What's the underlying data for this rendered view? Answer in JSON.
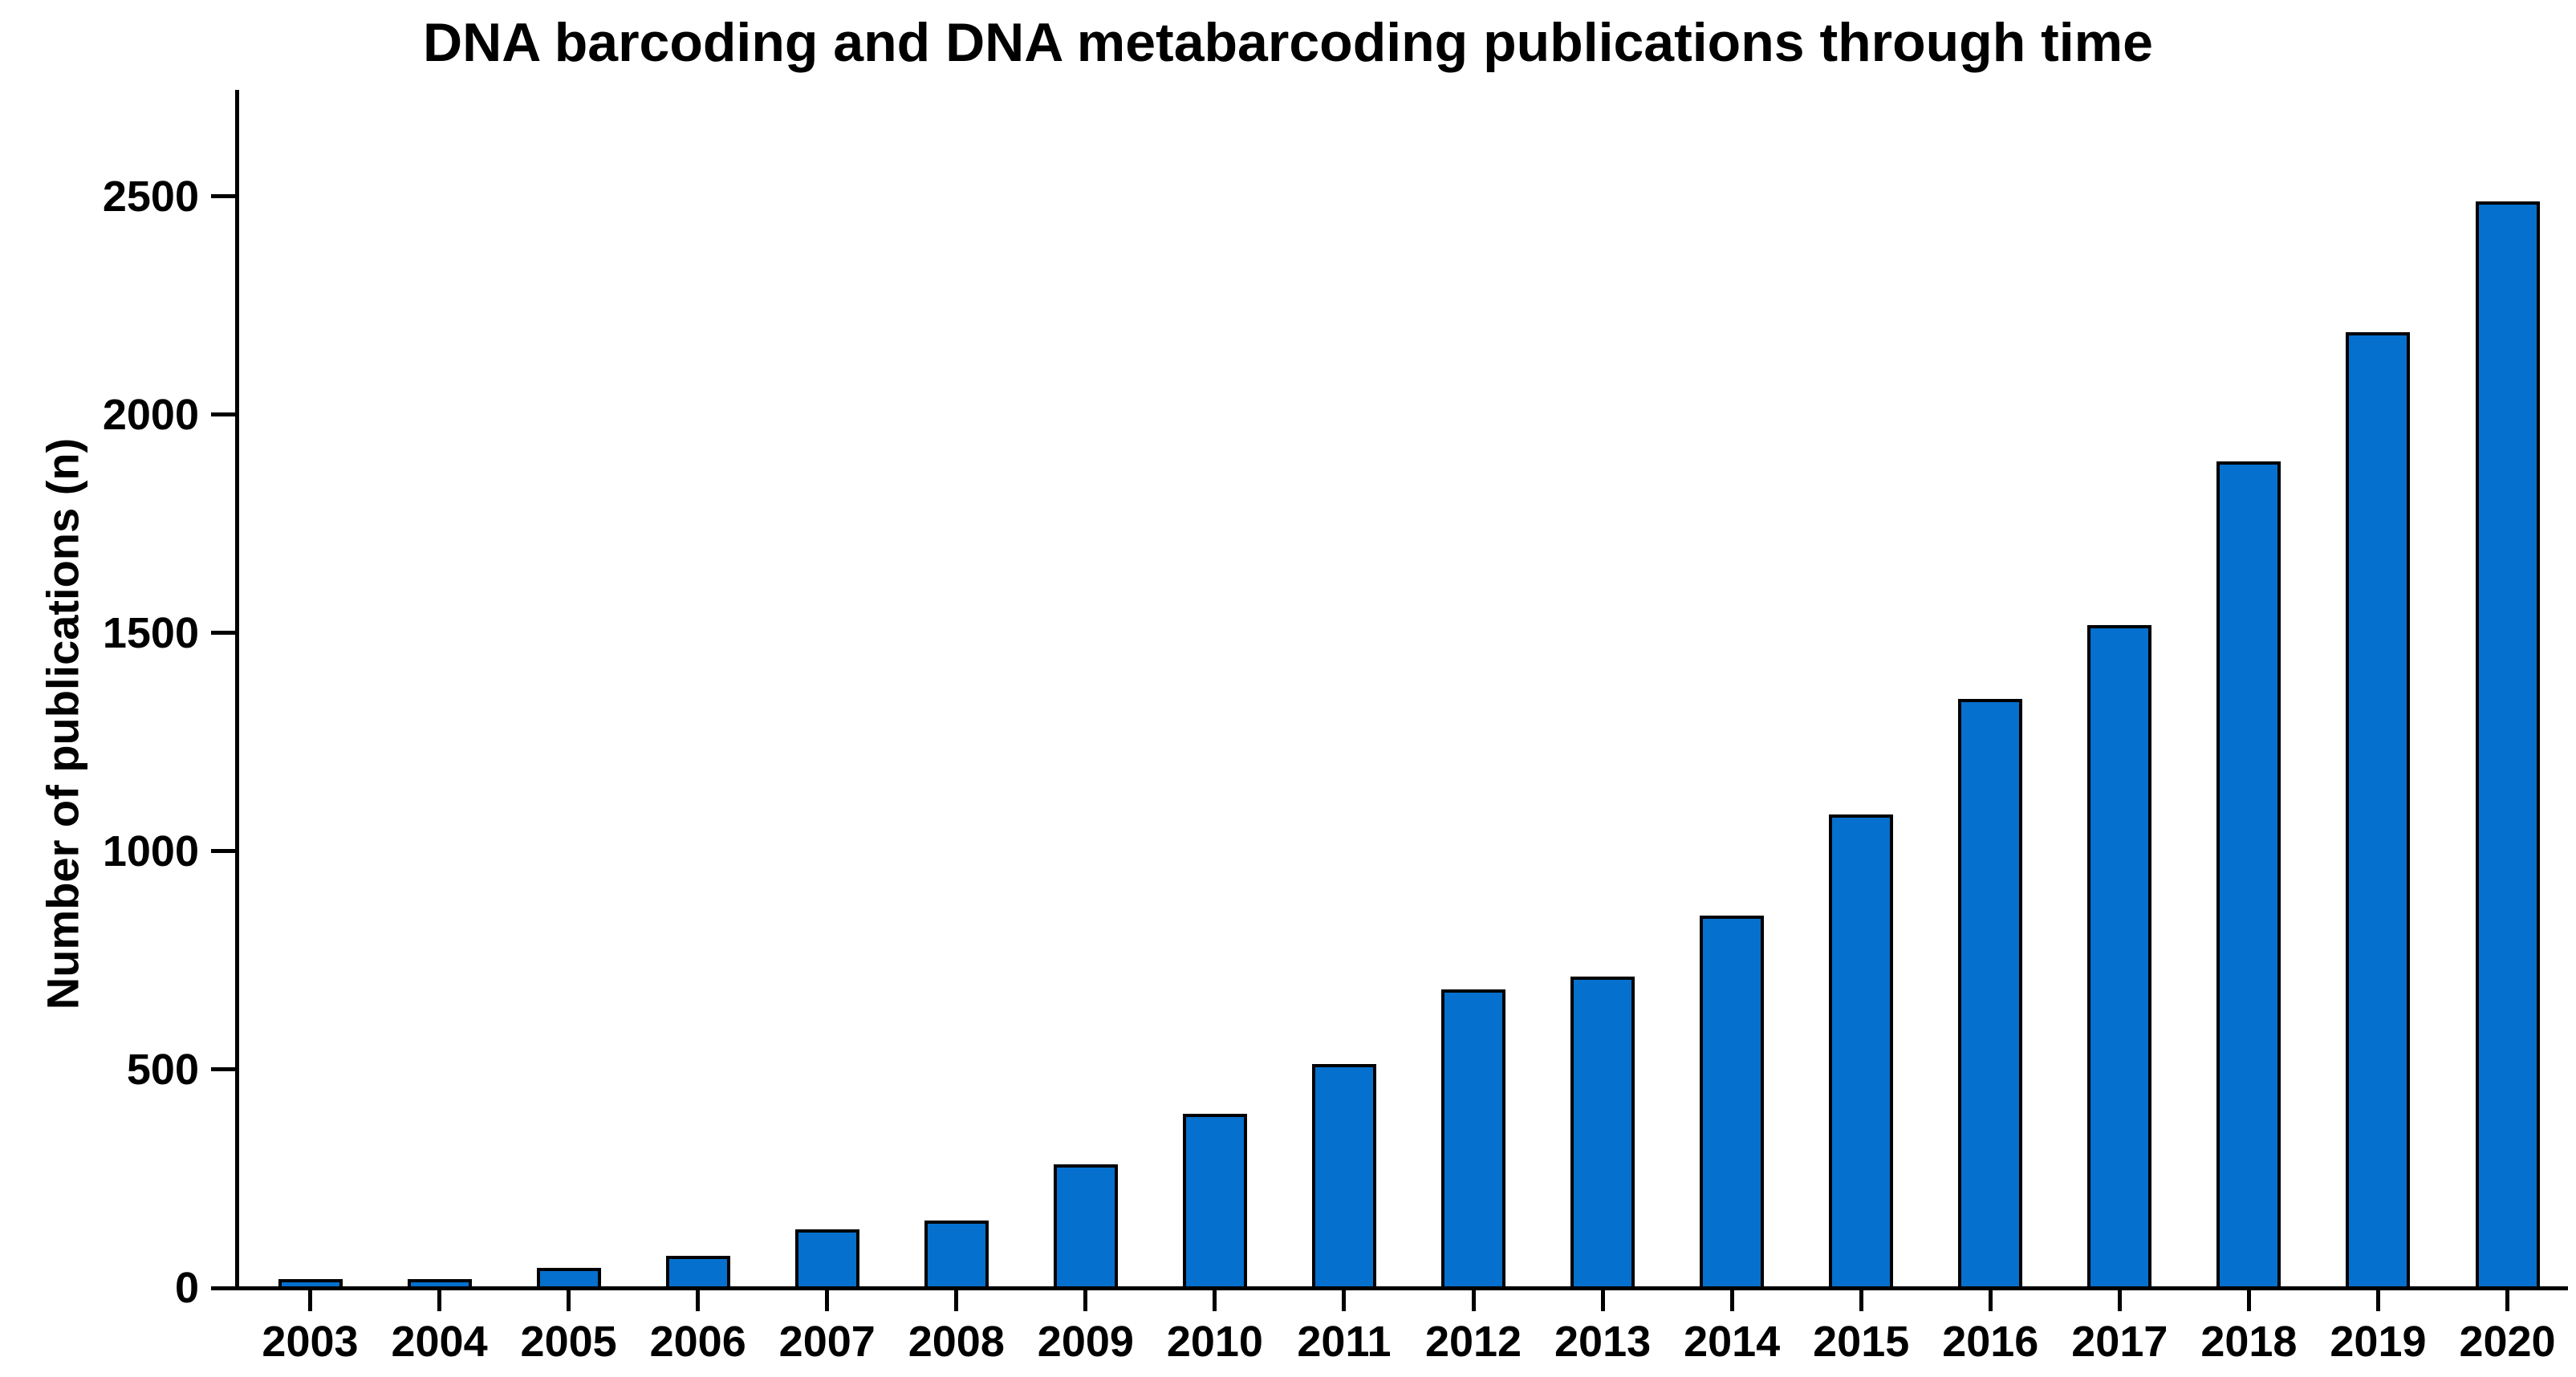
{
  "chart_data": {
    "type": "bar",
    "title": "DNA barcoding and DNA metabarcoding publications through time",
    "xlabel": "",
    "ylabel": "Number of publications (n)",
    "categories": [
      "2003",
      "2004",
      "2005",
      "2006",
      "2007",
      "2008",
      "2009",
      "2010",
      "2011",
      "2012",
      "2013",
      "2014",
      "2015",
      "2016",
      "2017",
      "2018",
      "2019",
      "2020"
    ],
    "values": [
      8,
      10,
      42,
      70,
      130,
      150,
      280,
      395,
      510,
      680,
      710,
      850,
      1080,
      1345,
      1515,
      1890,
      2185,
      2485
    ],
    "y_ticks": [
      0,
      500,
      1000,
      1500,
      2000,
      2500
    ],
    "ylim": [
      0,
      2740
    ],
    "grid": false,
    "legend_position": "none",
    "bar_color": "#0570CD",
    "bar_border_color": "#000000",
    "axis_color": "#000000",
    "text_color": "#000000",
    "background_color": "#FFFFFF"
  }
}
